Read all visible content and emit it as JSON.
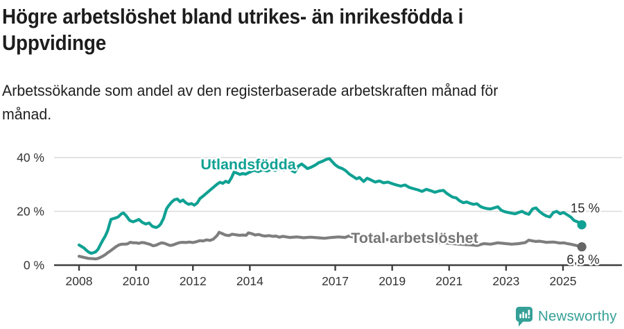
{
  "header": {
    "title_lines": [
      "Högre arbetslöshet bland utrikes- än inrikesfödda i",
      "Uppvidinge"
    ],
    "subtitle_lines": [
      "Arbetssökande som andel av den registerbaserade arbetskraften månad för",
      "månad."
    ]
  },
  "chart_data": {
    "type": "line",
    "x_ticks": [
      2008,
      2010,
      2012,
      2014,
      2017,
      2019,
      2021,
      2023,
      2025
    ],
    "y_ticks": [
      {
        "value": 0,
        "label": "0 %"
      },
      {
        "value": 20,
        "label": "20 %"
      },
      {
        "value": 40,
        "label": "40 %"
      }
    ],
    "xlim": [
      2008,
      2025.95
    ],
    "ylim": [
      0,
      43
    ],
    "grid": "horizontal",
    "axis_color": "#3e3e3e",
    "grid_color": "#dadada",
    "tick_label_color": "#333333",
    "end_label_color": "#2b2b2b",
    "series": [
      {
        "name": "Utlandsfödda",
        "color": "#0fa193",
        "dot_color": "#0fa193",
        "end_label": "15 %",
        "points": [
          [
            2008.0,
            7.5
          ],
          [
            2008.08,
            7.0
          ],
          [
            2008.17,
            6.4
          ],
          [
            2008.25,
            5.6
          ],
          [
            2008.33,
            4.9
          ],
          [
            2008.42,
            4.4
          ],
          [
            2008.5,
            4.6
          ],
          [
            2008.58,
            4.9
          ],
          [
            2008.67,
            5.9
          ],
          [
            2008.75,
            7.6
          ],
          [
            2008.83,
            9.2
          ],
          [
            2008.92,
            10.8
          ],
          [
            2009.0,
            12.7
          ],
          [
            2009.12,
            17.0
          ],
          [
            2009.2,
            17.3
          ],
          [
            2009.3,
            17.6
          ],
          [
            2009.37,
            17.9
          ],
          [
            2009.49,
            19.1
          ],
          [
            2009.56,
            19.4
          ],
          [
            2009.66,
            18.3
          ],
          [
            2009.78,
            16.6
          ],
          [
            2009.9,
            16.1
          ],
          [
            2010.02,
            16.6
          ],
          [
            2010.1,
            17.0
          ],
          [
            2010.22,
            15.9
          ],
          [
            2010.34,
            15.3
          ],
          [
            2010.46,
            15.7
          ],
          [
            2010.58,
            14.4
          ],
          [
            2010.71,
            14.0
          ],
          [
            2010.8,
            14.5
          ],
          [
            2010.87,
            15.3
          ],
          [
            2010.97,
            17.4
          ],
          [
            2011.07,
            20.9
          ],
          [
            2011.14,
            22.0
          ],
          [
            2011.25,
            23.4
          ],
          [
            2011.35,
            24.3
          ],
          [
            2011.45,
            24.6
          ],
          [
            2011.55,
            23.6
          ],
          [
            2011.65,
            24.2
          ],
          [
            2011.75,
            23.2
          ],
          [
            2011.85,
            22.6
          ],
          [
            2011.95,
            22.9
          ],
          [
            2012.05,
            22.3
          ],
          [
            2012.15,
            23.1
          ],
          [
            2012.25,
            24.8
          ],
          [
            2012.35,
            25.6
          ],
          [
            2012.45,
            26.5
          ],
          [
            2012.55,
            27.4
          ],
          [
            2012.65,
            28.3
          ],
          [
            2012.75,
            29.2
          ],
          [
            2012.85,
            30.1
          ],
          [
            2012.95,
            30.8
          ],
          [
            2013.05,
            30.4
          ],
          [
            2013.15,
            31.2
          ],
          [
            2013.25,
            30.7
          ],
          [
            2013.35,
            32.4
          ],
          [
            2013.45,
            34.7
          ],
          [
            2013.55,
            34.2
          ],
          [
            2013.65,
            33.7
          ],
          [
            2013.75,
            34.1
          ],
          [
            2013.85,
            33.8
          ],
          [
            2014.0,
            34.6
          ],
          [
            2014.15,
            35.3
          ],
          [
            2014.3,
            34.8
          ],
          [
            2014.45,
            35.5
          ],
          [
            2014.6,
            35.0
          ],
          [
            2014.75,
            35.7
          ],
          [
            2014.9,
            35.2
          ],
          [
            2015.05,
            35.9
          ],
          [
            2015.2,
            35.4
          ],
          [
            2015.35,
            36.2
          ],
          [
            2015.5,
            35.0
          ],
          [
            2015.58,
            34.6
          ],
          [
            2015.7,
            36.8
          ],
          [
            2015.82,
            37.6
          ],
          [
            2015.92,
            36.8
          ],
          [
            2016.02,
            35.9
          ],
          [
            2016.15,
            36.4
          ],
          [
            2016.3,
            37.2
          ],
          [
            2016.42,
            38.1
          ],
          [
            2016.55,
            38.6
          ],
          [
            2016.68,
            39.3
          ],
          [
            2016.8,
            39.6
          ],
          [
            2016.9,
            38.4
          ],
          [
            2017.0,
            37.3
          ],
          [
            2017.12,
            36.4
          ],
          [
            2017.25,
            35.9
          ],
          [
            2017.37,
            35.1
          ],
          [
            2017.5,
            33.8
          ],
          [
            2017.62,
            33.0
          ],
          [
            2017.75,
            32.1
          ],
          [
            2017.85,
            32.6
          ],
          [
            2018.0,
            31.1
          ],
          [
            2018.12,
            32.3
          ],
          [
            2018.25,
            31.7
          ],
          [
            2018.4,
            30.9
          ],
          [
            2018.55,
            31.3
          ],
          [
            2018.7,
            30.6
          ],
          [
            2018.85,
            30.9
          ],
          [
            2019.0,
            30.3
          ],
          [
            2019.15,
            29.8
          ],
          [
            2019.3,
            29.4
          ],
          [
            2019.45,
            29.8
          ],
          [
            2019.6,
            28.9
          ],
          [
            2019.75,
            28.4
          ],
          [
            2019.9,
            28.0
          ],
          [
            2020.05,
            27.4
          ],
          [
            2020.2,
            28.2
          ],
          [
            2020.35,
            27.7
          ],
          [
            2020.5,
            27.1
          ],
          [
            2020.65,
            27.6
          ],
          [
            2020.8,
            27.8
          ],
          [
            2020.9,
            26.8
          ],
          [
            2021.0,
            26.1
          ],
          [
            2021.12,
            25.3
          ],
          [
            2021.25,
            25.0
          ],
          [
            2021.37,
            23.9
          ],
          [
            2021.5,
            23.2
          ],
          [
            2021.62,
            23.5
          ],
          [
            2021.73,
            23.0
          ],
          [
            2021.85,
            22.6
          ],
          [
            2021.98,
            22.8
          ],
          [
            2022.1,
            21.8
          ],
          [
            2022.22,
            21.3
          ],
          [
            2022.34,
            21.0
          ],
          [
            2022.46,
            20.9
          ],
          [
            2022.58,
            21.3
          ],
          [
            2022.71,
            21.7
          ],
          [
            2022.83,
            20.4
          ],
          [
            2022.95,
            19.9
          ],
          [
            2023.07,
            19.6
          ],
          [
            2023.2,
            19.3
          ],
          [
            2023.32,
            19.1
          ],
          [
            2023.44,
            19.6
          ],
          [
            2023.56,
            20.0
          ],
          [
            2023.68,
            19.3
          ],
          [
            2023.8,
            18.9
          ],
          [
            2023.93,
            20.9
          ],
          [
            2024.05,
            21.3
          ],
          [
            2024.17,
            20.0
          ],
          [
            2024.29,
            19.0
          ],
          [
            2024.41,
            18.3
          ],
          [
            2024.54,
            17.9
          ],
          [
            2024.66,
            19.6
          ],
          [
            2024.78,
            20.0
          ],
          [
            2024.9,
            19.1
          ],
          [
            2025.02,
            19.6
          ],
          [
            2025.15,
            18.7
          ],
          [
            2025.27,
            17.9
          ],
          [
            2025.39,
            16.6
          ],
          [
            2025.51,
            16.1
          ],
          [
            2025.66,
            15.0
          ]
        ]
      },
      {
        "name": "Total arbetslöshet",
        "color": "#7e7e7e",
        "dot_color": "#666666",
        "end_label": "6,8 %",
        "points": [
          [
            2008.0,
            3.3
          ],
          [
            2008.17,
            2.9
          ],
          [
            2008.33,
            2.5
          ],
          [
            2008.5,
            2.4
          ],
          [
            2008.58,
            2.3
          ],
          [
            2008.67,
            2.5
          ],
          [
            2008.75,
            2.9
          ],
          [
            2008.83,
            3.3
          ],
          [
            2008.92,
            3.9
          ],
          [
            2009.0,
            4.6
          ],
          [
            2009.1,
            5.3
          ],
          [
            2009.2,
            6.1
          ],
          [
            2009.3,
            6.9
          ],
          [
            2009.4,
            7.5
          ],
          [
            2009.5,
            7.8
          ],
          [
            2009.6,
            7.8
          ],
          [
            2009.7,
            7.9
          ],
          [
            2009.8,
            8.5
          ],
          [
            2009.9,
            8.3
          ],
          [
            2010.0,
            8.3
          ],
          [
            2010.1,
            8.1
          ],
          [
            2010.2,
            8.4
          ],
          [
            2010.3,
            8.3
          ],
          [
            2010.4,
            8.0
          ],
          [
            2010.5,
            7.7
          ],
          [
            2010.6,
            7.2
          ],
          [
            2010.7,
            7.4
          ],
          [
            2010.8,
            7.9
          ],
          [
            2010.9,
            8.3
          ],
          [
            2011.0,
            8.1
          ],
          [
            2011.1,
            7.7
          ],
          [
            2011.2,
            7.3
          ],
          [
            2011.3,
            7.5
          ],
          [
            2011.4,
            7.9
          ],
          [
            2011.5,
            8.3
          ],
          [
            2011.63,
            8.5
          ],
          [
            2011.75,
            8.4
          ],
          [
            2011.87,
            8.6
          ],
          [
            2012.0,
            8.4
          ],
          [
            2012.12,
            8.7
          ],
          [
            2012.24,
            9.1
          ],
          [
            2012.36,
            9.0
          ],
          [
            2012.48,
            9.4
          ],
          [
            2012.6,
            9.2
          ],
          [
            2012.72,
            9.7
          ],
          [
            2012.85,
            11.0
          ],
          [
            2012.92,
            12.2
          ],
          [
            2013.02,
            11.8
          ],
          [
            2013.14,
            11.2
          ],
          [
            2013.26,
            11.0
          ],
          [
            2013.38,
            11.5
          ],
          [
            2013.5,
            11.3
          ],
          [
            2013.63,
            11.1
          ],
          [
            2013.75,
            11.2
          ],
          [
            2013.87,
            11.1
          ],
          [
            2013.95,
            12.0
          ],
          [
            2014.07,
            11.7
          ],
          [
            2014.19,
            11.2
          ],
          [
            2014.31,
            11.4
          ],
          [
            2014.43,
            11.0
          ],
          [
            2014.55,
            10.8
          ],
          [
            2014.67,
            11.0
          ],
          [
            2014.8,
            10.7
          ],
          [
            2014.92,
            10.8
          ],
          [
            2015.04,
            10.4
          ],
          [
            2015.16,
            10.7
          ],
          [
            2015.28,
            10.5
          ],
          [
            2015.4,
            10.3
          ],
          [
            2015.65,
            10.5
          ],
          [
            2015.89,
            10.2
          ],
          [
            2016.13,
            10.4
          ],
          [
            2016.38,
            10.2
          ],
          [
            2016.62,
            10.0
          ],
          [
            2016.87,
            10.3
          ],
          [
            2017.11,
            10.5
          ],
          [
            2017.35,
            10.3
          ],
          [
            2017.47,
            10.8
          ],
          [
            2017.6,
            10.5
          ],
          [
            2017.84,
            10.3
          ],
          [
            2018.2,
            10.0
          ],
          [
            2018.57,
            9.7
          ],
          [
            2018.93,
            9.4
          ],
          [
            2019.3,
            9.0
          ],
          [
            2019.67,
            8.8
          ],
          [
            2020.03,
            8.6
          ],
          [
            2020.4,
            8.5
          ],
          [
            2020.76,
            8.3
          ],
          [
            2021.12,
            8.0
          ],
          [
            2021.49,
            7.7
          ],
          [
            2021.8,
            7.5
          ],
          [
            2021.98,
            7.3
          ],
          [
            2022.22,
            8.0
          ],
          [
            2022.46,
            7.8
          ],
          [
            2022.71,
            8.3
          ],
          [
            2023.0,
            8.0
          ],
          [
            2023.2,
            7.8
          ],
          [
            2023.44,
            8.0
          ],
          [
            2023.68,
            8.4
          ],
          [
            2023.8,
            9.3
          ],
          [
            2023.93,
            9.0
          ],
          [
            2024.05,
            8.8
          ],
          [
            2024.17,
            8.9
          ],
          [
            2024.3,
            8.7
          ],
          [
            2024.41,
            8.5
          ],
          [
            2024.66,
            8.6
          ],
          [
            2024.78,
            8.4
          ],
          [
            2024.9,
            8.2
          ],
          [
            2025.02,
            8.3
          ],
          [
            2025.15,
            8.0
          ],
          [
            2025.27,
            7.8
          ],
          [
            2025.39,
            7.5
          ],
          [
            2025.51,
            7.2
          ],
          [
            2025.66,
            6.8
          ]
        ]
      }
    ]
  },
  "footer": {
    "brand": "Newsworthy",
    "brand_color": "#35a097"
  }
}
